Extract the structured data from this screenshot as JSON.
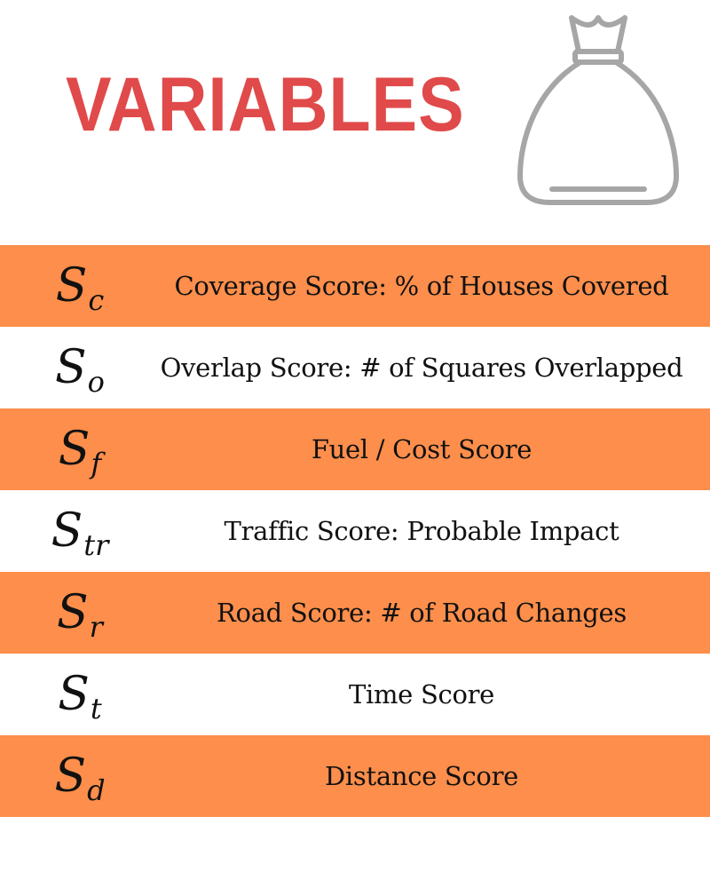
{
  "title": "VARIABLES",
  "icon": "money-bag-icon",
  "colors": {
    "title": "#e04a4a",
    "band": "#fd8e4b",
    "icon_stroke": "#a6a6a6"
  },
  "rows": [
    {
      "symbol": "S",
      "subscript": "c",
      "description": "Coverage Score: % of Houses Covered",
      "shaded": true
    },
    {
      "symbol": "S",
      "subscript": "o",
      "description": "Overlap Score: # of Squares Overlapped",
      "shaded": false
    },
    {
      "symbol": "S",
      "subscript": "f",
      "description": "Fuel / Cost Score",
      "shaded": true
    },
    {
      "symbol": "S",
      "subscript": "tr",
      "description": "Traffic Score: Probable Impact",
      "shaded": false
    },
    {
      "symbol": "S",
      "subscript": "r",
      "description": "Road Score: # of Road Changes",
      "shaded": true
    },
    {
      "symbol": "S",
      "subscript": "t",
      "description": "Time Score",
      "shaded": false
    },
    {
      "symbol": "S",
      "subscript": "d",
      "description": "Distance Score",
      "shaded": true
    }
  ]
}
